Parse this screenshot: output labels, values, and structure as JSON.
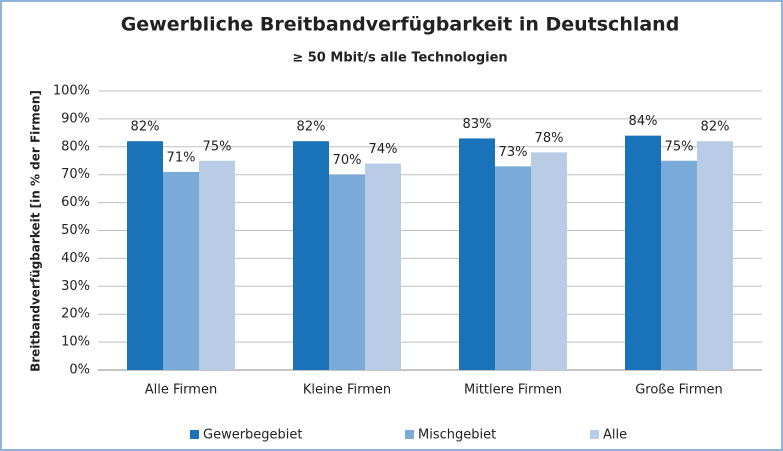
{
  "chart_data": {
    "type": "bar",
    "title": "Gewerbliche Breitbandverfügbarkeit in Deutschland",
    "subtitle": "≥ 50 Mbit/s alle Technologien",
    "y_label": "Breitbandverfügbarkeit [in % der Firmen]",
    "categories": [
      "Alle Firmen",
      "Kleine Firmen",
      "Mittlere Firmen",
      "Große Firmen"
    ],
    "series": [
      {
        "name": "Gewerbegebiet",
        "color": "#1a72b9",
        "values": [
          82,
          82,
          83,
          84
        ],
        "value_labels": [
          "82%",
          "82%",
          "83%",
          "84%"
        ]
      },
      {
        "name": "Mischgebiet",
        "color": "#7aaad7",
        "values": [
          71,
          70,
          73,
          75
        ],
        "value_labels": [
          "71%",
          "70%",
          "73%",
          "75%"
        ]
      },
      {
        "name": "Alle",
        "color": "#b8cce5",
        "values": [
          75,
          74,
          78,
          82
        ],
        "value_labels": [
          "75%",
          "74%",
          "78%",
          "82%"
        ]
      }
    ],
    "ylim": [
      0,
      100
    ],
    "yticks": [
      {
        "value": 0,
        "label": "0%"
      },
      {
        "value": 10,
        "label": "10%"
      },
      {
        "value": 20,
        "label": "20%"
      },
      {
        "value": 30,
        "label": "30%"
      },
      {
        "value": 40,
        "label": "40%"
      },
      {
        "value": 50,
        "label": "50%"
      },
      {
        "value": 60,
        "label": "60%"
      },
      {
        "value": 70,
        "label": "70%"
      },
      {
        "value": 80,
        "label": "80%"
      },
      {
        "value": 90,
        "label": "90%"
      },
      {
        "value": 100,
        "label": "100%"
      }
    ],
    "grid": true,
    "legend": "bottom"
  }
}
